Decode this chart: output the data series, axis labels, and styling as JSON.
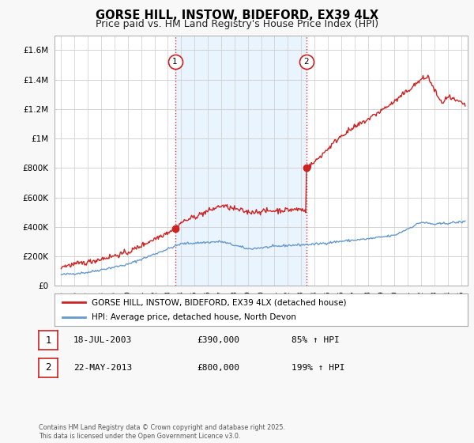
{
  "title": "GORSE HILL, INSTOW, BIDEFORD, EX39 4LX",
  "subtitle": "Price paid vs. HM Land Registry's House Price Index (HPI)",
  "ytick_vals": [
    0,
    200000,
    400000,
    600000,
    800000,
    1000000,
    1200000,
    1400000,
    1600000
  ],
  "ylim": [
    0,
    1700000
  ],
  "xlim_start": 1994.5,
  "xlim_end": 2025.5,
  "background_color": "#f8f8f8",
  "plot_bg_color": "#ffffff",
  "red_line_color": "#cc2222",
  "blue_line_color": "#6699cc",
  "vline_color": "#cc2222",
  "shade_color": "#ddeeff",
  "transaction1_x": 2003.54,
  "transaction1_y": 390000,
  "transaction2_x": 2013.39,
  "transaction2_y": 800000,
  "legend_red_label": "GORSE HILL, INSTOW, BIDEFORD, EX39 4LX (detached house)",
  "legend_blue_label": "HPI: Average price, detached house, North Devon",
  "table_rows": [
    {
      "num": "1",
      "date": "18-JUL-2003",
      "price": "£390,000",
      "hpi": "85% ↑ HPI"
    },
    {
      "num": "2",
      "date": "22-MAY-2013",
      "price": "£800,000",
      "hpi": "199% ↑ HPI"
    }
  ],
  "footnote": "Contains HM Land Registry data © Crown copyright and database right 2025.\nThis data is licensed under the Open Government Licence v3.0.",
  "title_fontsize": 10.5,
  "subtitle_fontsize": 9
}
